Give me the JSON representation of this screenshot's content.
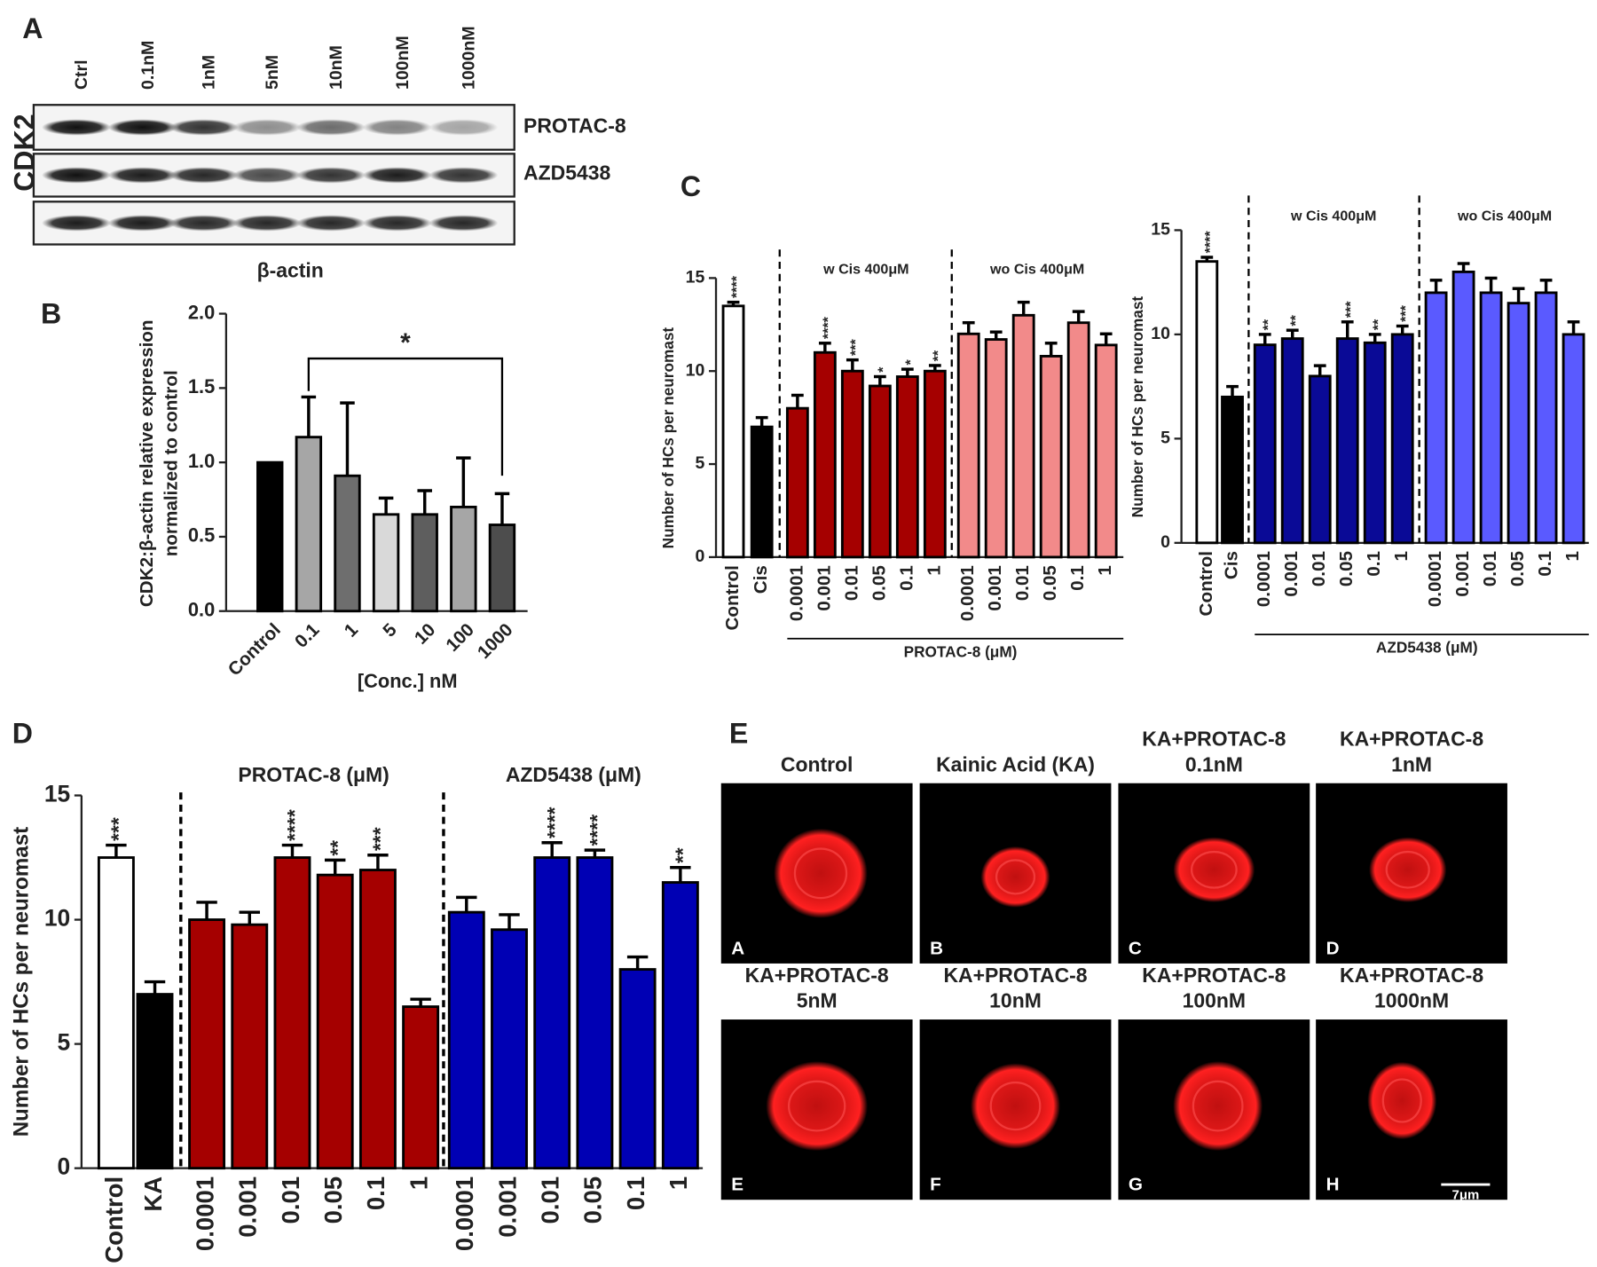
{
  "panel_labels": [
    "A",
    "B",
    "C",
    "D",
    "E"
  ],
  "blot": {
    "lanes": [
      "Ctrl",
      "0.1nM",
      "1nM",
      "5nM",
      "10nM",
      "100nM",
      "1000nM"
    ],
    "side_label": "CDK2",
    "row_labels": [
      "PROTAC-8",
      "AZD5438"
    ],
    "bottom_label": "β-actin"
  },
  "chart_data": [
    {
      "type": "bar",
      "categories": [
        "Control",
        "0.1",
        "1",
        "5",
        "10",
        "100",
        "1000"
      ],
      "values": [
        1.0,
        1.17,
        0.91,
        0.65,
        0.65,
        0.7,
        0.58
      ],
      "errors": [
        0,
        0.27,
        0.49,
        0.11,
        0.16,
        0.33,
        0.21
      ],
      "colors": [
        "#000000",
        "#a6a6a6",
        "#6e6e6e",
        "#d9d9d9",
        "#5e5e5e",
        "#a6a6a6",
        "#4d4d4d"
      ],
      "y_label": [
        "CDK2:β-actin relative expression",
        "normalized to control"
      ],
      "x_label": "[Conc.] nM",
      "ylim": [
        0,
        2
      ],
      "yticks": [
        {
          "value": 0,
          "label": "0.0"
        },
        {
          "value": 0.5,
          "label": "0.5"
        },
        {
          "value": 1,
          "label": "1.0"
        },
        {
          "value": 1.5,
          "label": "1.5"
        },
        {
          "value": 2,
          "label": "2.0"
        }
      ],
      "bracket": {
        "from": "0.1",
        "to": "1000",
        "label": "*"
      }
    },
    {
      "type": "bar",
      "categories": [
        "Control",
        "Cis",
        "0.0001",
        "0.001",
        "0.01",
        "0.05",
        "0.1",
        "1",
        "0.0001",
        "0.001",
        "0.01",
        "0.05",
        "0.1",
        "1"
      ],
      "values": [
        13.5,
        7,
        8,
        11,
        10,
        9.2,
        9.7,
        10,
        12,
        11.7,
        13,
        10.8,
        12.6,
        11.4
      ],
      "errors": [
        0.2,
        0.5,
        0.7,
        0.5,
        0.6,
        0.5,
        0.4,
        0.3,
        0.6,
        0.4,
        0.7,
        0.7,
        0.6,
        0.6
      ],
      "significance": [
        "****",
        null,
        null,
        "****",
        "***",
        "*",
        "*",
        "**",
        null,
        null,
        null,
        null,
        null,
        null
      ],
      "colors": [
        "#ffffff",
        "#000000",
        "#a50000",
        "#a50000",
        "#a50000",
        "#a50000",
        "#a50000",
        "#a50000",
        "#f28a8a",
        "#f28a8a",
        "#f28a8a",
        "#f28a8a",
        "#f28a8a",
        "#f28a8a"
      ],
      "group_labels": [
        "w Cis 400μM",
        "wo Cis 400μM"
      ],
      "x_label": "PROTAC-8 (μM)",
      "y_label": "Number of HCs per neuromast",
      "ylim": [
        0,
        15
      ],
      "yticks": [
        0,
        5,
        10,
        15
      ]
    },
    {
      "type": "bar",
      "categories": [
        "Control",
        "Cis",
        "0.0001",
        "0.001",
        "0.01",
        "0.05",
        "0.1",
        "1",
        "0.0001",
        "0.001",
        "0.01",
        "0.05",
        "0.1",
        "1"
      ],
      "values": [
        13.5,
        7,
        9.5,
        9.8,
        8,
        9.8,
        9.6,
        10,
        12,
        13,
        12,
        11.5,
        12,
        10
      ],
      "errors": [
        0.2,
        0.5,
        0.5,
        0.4,
        0.5,
        0.8,
        0.4,
        0.4,
        0.6,
        0.4,
        0.7,
        0.7,
        0.6,
        0.6
      ],
      "significance": [
        "****",
        null,
        "**",
        "**",
        null,
        "***",
        "**",
        "***",
        null,
        null,
        null,
        null,
        null,
        null
      ],
      "colors": [
        "#ffffff",
        "#000000",
        "#0a0a96",
        "#0a0a96",
        "#0a0a96",
        "#0a0a96",
        "#0a0a96",
        "#0a0a96",
        "#5a5aff",
        "#5a5aff",
        "#5a5aff",
        "#5a5aff",
        "#5a5aff",
        "#5a5aff"
      ],
      "group_labels": [
        "w Cis 400μM",
        "wo Cis 400μM"
      ],
      "x_label": "AZD5438 (μM)",
      "y_label": "Number of HCs per neuromast",
      "ylim": [
        0,
        15
      ],
      "yticks": [
        0,
        5,
        10,
        15
      ]
    },
    {
      "type": "bar",
      "categories": [
        "Control",
        "KA",
        "0.0001",
        "0.001",
        "0.01",
        "0.05",
        "0.1",
        "1",
        "0.0001",
        "0.001",
        "0.01",
        "0.05",
        "0.1",
        "1"
      ],
      "values": [
        12.5,
        7,
        10,
        9.8,
        12.5,
        11.8,
        12,
        6.5,
        10.3,
        9.6,
        12.5,
        12.5,
        8,
        11.5
      ],
      "errors": [
        0.5,
        0.5,
        0.7,
        0.5,
        0.5,
        0.6,
        0.6,
        0.3,
        0.6,
        0.6,
        0.6,
        0.3,
        0.5,
        0.6
      ],
      "significance": [
        "***",
        null,
        null,
        null,
        "****",
        "**",
        "***",
        null,
        null,
        null,
        "****",
        "****",
        null,
        "**"
      ],
      "colors": [
        "#ffffff",
        "#000000",
        "#a50000",
        "#a50000",
        "#a50000",
        "#a50000",
        "#a50000",
        "#a50000",
        "#0000b4",
        "#0000b4",
        "#0000b4",
        "#0000b4",
        "#0000b4",
        "#0000b4"
      ],
      "group_labels": [
        "PROTAC-8 (μM)",
        "AZD5438 (μM)"
      ],
      "y_label": "Number of HCs per neuromast",
      "ylim": [
        0,
        15
      ],
      "yticks": [
        0,
        5,
        10,
        15
      ]
    }
  ],
  "images": {
    "panels": [
      {
        "title": [
          "Control"
        ],
        "letter": "A"
      },
      {
        "title": [
          "Kainic Acid (KA)"
        ],
        "letter": "B"
      },
      {
        "title": [
          "KA+PROTAC-8",
          "0.1nM"
        ],
        "letter": "C"
      },
      {
        "title": [
          "KA+PROTAC-8",
          "1nM"
        ],
        "letter": "D"
      },
      {
        "title": [
          "KA+PROTAC-8",
          "5nM"
        ],
        "letter": "E"
      },
      {
        "title": [
          "KA+PROTAC-8",
          "10nM"
        ],
        "letter": "F"
      },
      {
        "title": [
          "KA+PROTAC-8",
          "100nM"
        ],
        "letter": "G"
      },
      {
        "title": [
          "KA+PROTAC-8",
          "1000nM"
        ],
        "letter": "H"
      }
    ],
    "scale_bar": "7μm"
  }
}
